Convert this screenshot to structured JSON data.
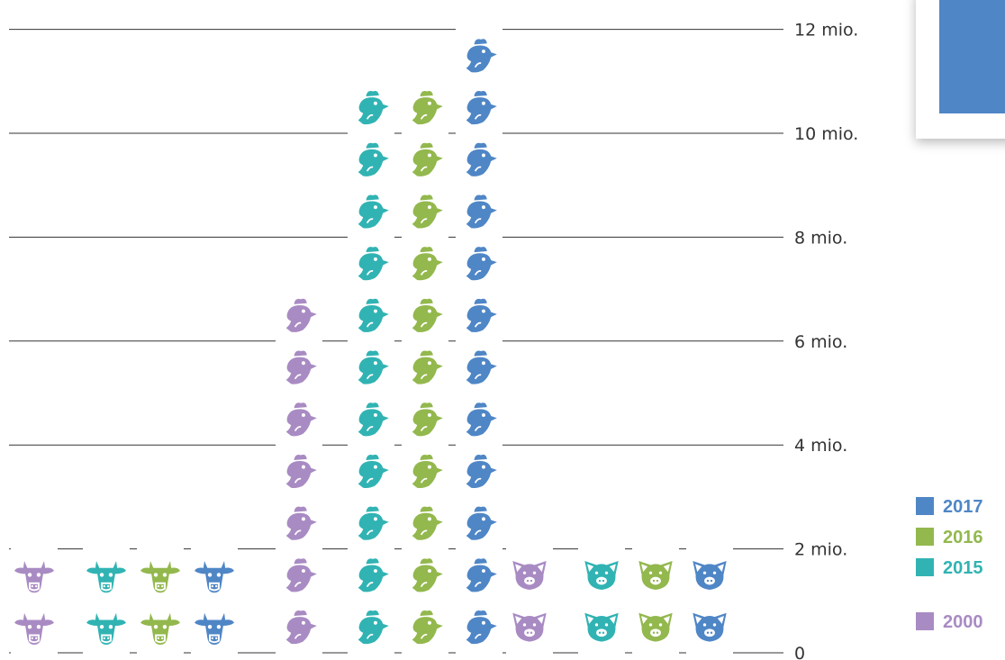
{
  "chart_data": {
    "type": "pictogram",
    "unit": "mio.",
    "ylim": [
      0,
      12
    ],
    "y_ticks": [
      {
        "value": 0,
        "label": "0"
      },
      {
        "value": 2,
        "label": "2 mio."
      },
      {
        "value": 4,
        "label": "4 mio."
      },
      {
        "value": 6,
        "label": "6 mio."
      },
      {
        "value": 8,
        "label": "8 mio."
      },
      {
        "value": 10,
        "label": "10 mio."
      },
      {
        "value": 12,
        "label": "12 mio."
      }
    ],
    "icon_unit_value": 1,
    "categories": [
      "cattle",
      "poultry",
      "pigs"
    ],
    "category_icons": [
      "cow-icon",
      "chicken-icon",
      "pig-icon"
    ],
    "series": [
      {
        "name": "2000",
        "color": "#a98bc3",
        "values": [
          2,
          7,
          2
        ]
      },
      {
        "name": "2015",
        "color": "#31b3b3",
        "values": [
          2,
          11,
          2
        ]
      },
      {
        "name": "2016",
        "color": "#93b84d",
        "values": [
          2,
          11,
          2
        ]
      },
      {
        "name": "2017",
        "color": "#4f86c6",
        "values": [
          2,
          12,
          2
        ]
      }
    ],
    "legend": {
      "placement": "right",
      "entries": [
        {
          "label": "2017",
          "color": "#4f86c6"
        },
        {
          "label": "2016",
          "color": "#93b84d"
        },
        {
          "label": "2015",
          "color": "#31b3b3"
        },
        {
          "label": "2000",
          "color": "#a98bc3"
        }
      ]
    },
    "grid": true
  },
  "card": {
    "swatch_color": "#4f86c6"
  }
}
